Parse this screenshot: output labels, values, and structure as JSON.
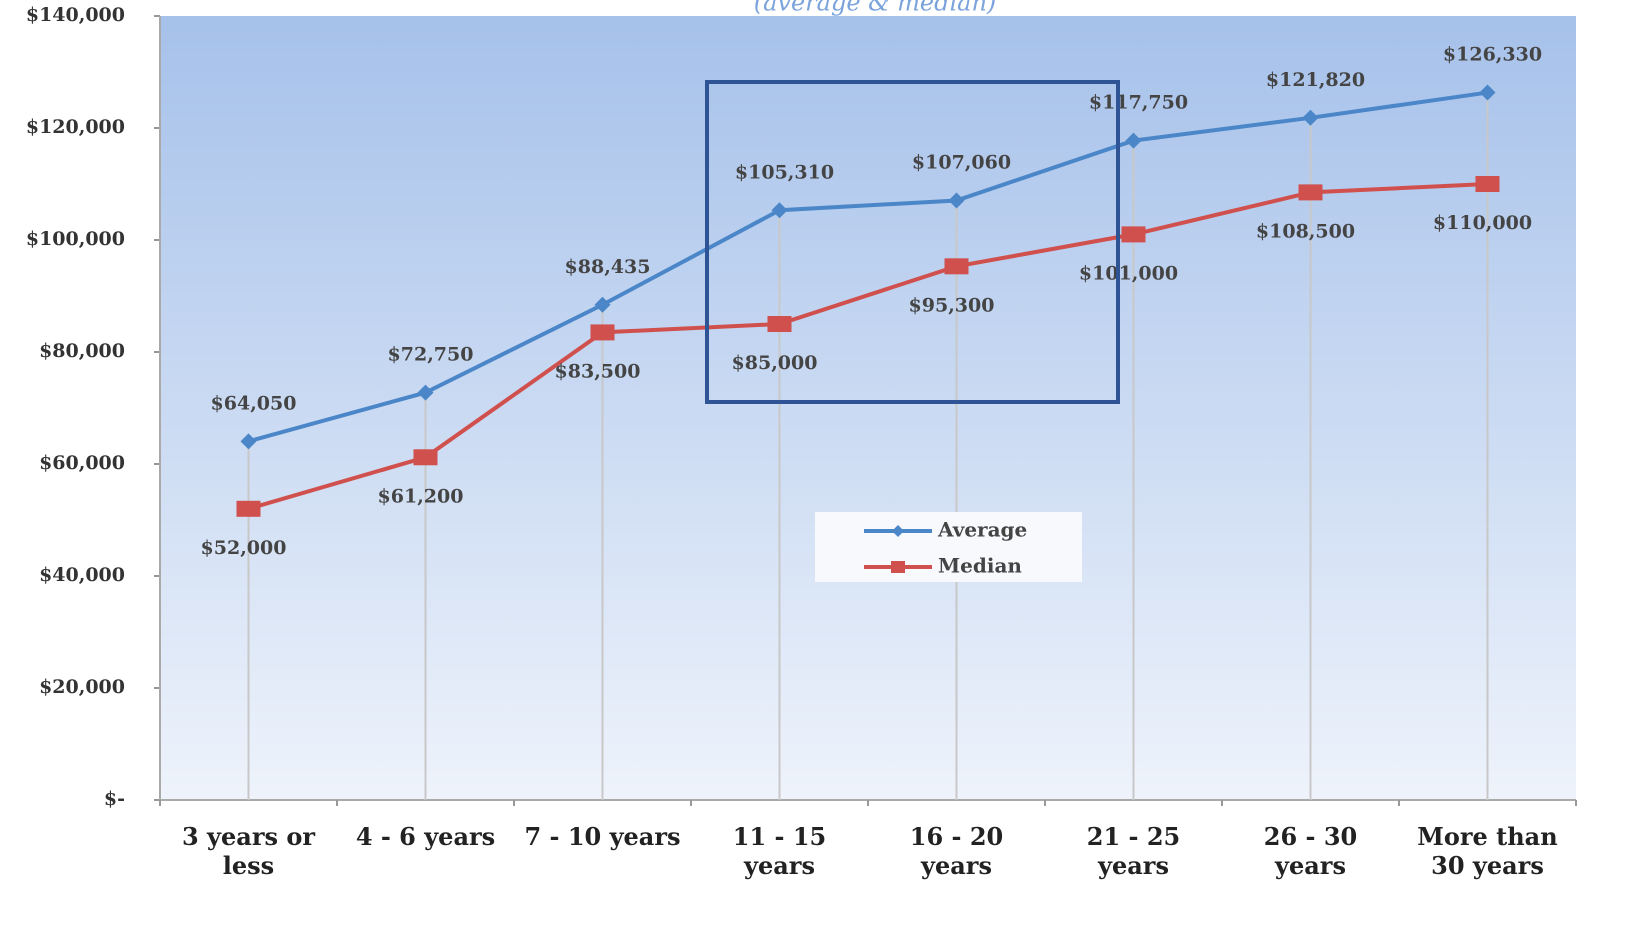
{
  "chart_data": {
    "type": "line",
    "subtitle": "(average & median)",
    "categories": [
      "3 years or\nless",
      "4 - 6 years",
      "7 - 10 years",
      "11 - 15\nyears",
      "16 - 20\nyears",
      "21 - 25\nyears",
      "26 - 30\nyears",
      "More than\n30 years"
    ],
    "series": [
      {
        "name": "Average",
        "color": "#4a86c8",
        "marker": "diamond",
        "values": [
          64050,
          72750,
          88435,
          105310,
          107060,
          117750,
          121820,
          126330
        ],
        "value_labels": [
          "$64,050",
          "$72,750",
          "$88,435",
          "$105,310",
          "$107,060",
          "$117,750",
          "$121,820",
          "$126,330"
        ]
      },
      {
        "name": "Median",
        "color": "#d0504d",
        "marker": "square",
        "values": [
          52000,
          61200,
          83500,
          85000,
          95300,
          101000,
          108500,
          110000
        ],
        "value_labels": [
          "$52,000",
          "$61,200",
          "$83,500",
          "$85,000",
          "$95,300",
          "$101,000",
          "$108,500",
          "$110,000"
        ]
      }
    ],
    "ylim": [
      0,
      140000
    ],
    "yticks": [
      {
        "value": 0,
        "label": "$-"
      },
      {
        "value": 20000,
        "label": "$20,000"
      },
      {
        "value": 40000,
        "label": "$40,000"
      },
      {
        "value": 60000,
        "label": "$60,000"
      },
      {
        "value": 80000,
        "label": "$80,000"
      },
      {
        "value": 100000,
        "label": "$100,000"
      },
      {
        "value": 120000,
        "label": "$120,000"
      },
      {
        "value": 140000,
        "label": "$140,000"
      }
    ],
    "legend": "center"
  }
}
